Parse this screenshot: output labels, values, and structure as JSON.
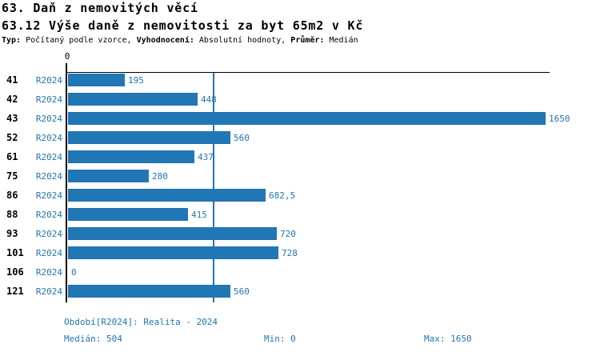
{
  "header": {
    "title": "63. Daň z nemovitých věcí",
    "subtitle": "63.12 Výše daně z nemovitosti za byt 65m2 v Kč",
    "meta": [
      {
        "label": "Typ:",
        "value": "Počítaný podle vzorce,"
      },
      {
        "label": "Vyhodnocení:",
        "value": "Absolutní hodnoty,"
      },
      {
        "label": "Průměr:",
        "value": "Medián"
      }
    ]
  },
  "chart_data": {
    "type": "bar",
    "orientation": "horizontal",
    "title": "63.12 Výše daně z nemovitosti za byt 65m2 v Kč",
    "categories": [
      "41",
      "42",
      "43",
      "52",
      "61",
      "75",
      "86",
      "88",
      "93",
      "101",
      "106",
      "121"
    ],
    "series_label": "R2024",
    "values": [
      195,
      448,
      1650,
      560,
      437,
      280,
      682.5,
      415,
      720,
      728,
      0,
      560
    ],
    "value_labels": [
      "195",
      "448",
      "1650",
      "560",
      "437",
      "280",
      "682,5",
      "415",
      "720",
      "728",
      "0",
      "560"
    ],
    "xlim": [
      0,
      1650
    ],
    "axis_tick": "0",
    "median_line_value": 504,
    "grid": false,
    "legend_position": "none",
    "bar_color": "#2176B5",
    "stats": {
      "median": 504,
      "min": 0,
      "max": 1650
    }
  },
  "footer": {
    "period": "Období[R2024]: Realita - 2024",
    "median": "Medián: 504",
    "min": "Min: 0",
    "max": "Max: 1650"
  }
}
